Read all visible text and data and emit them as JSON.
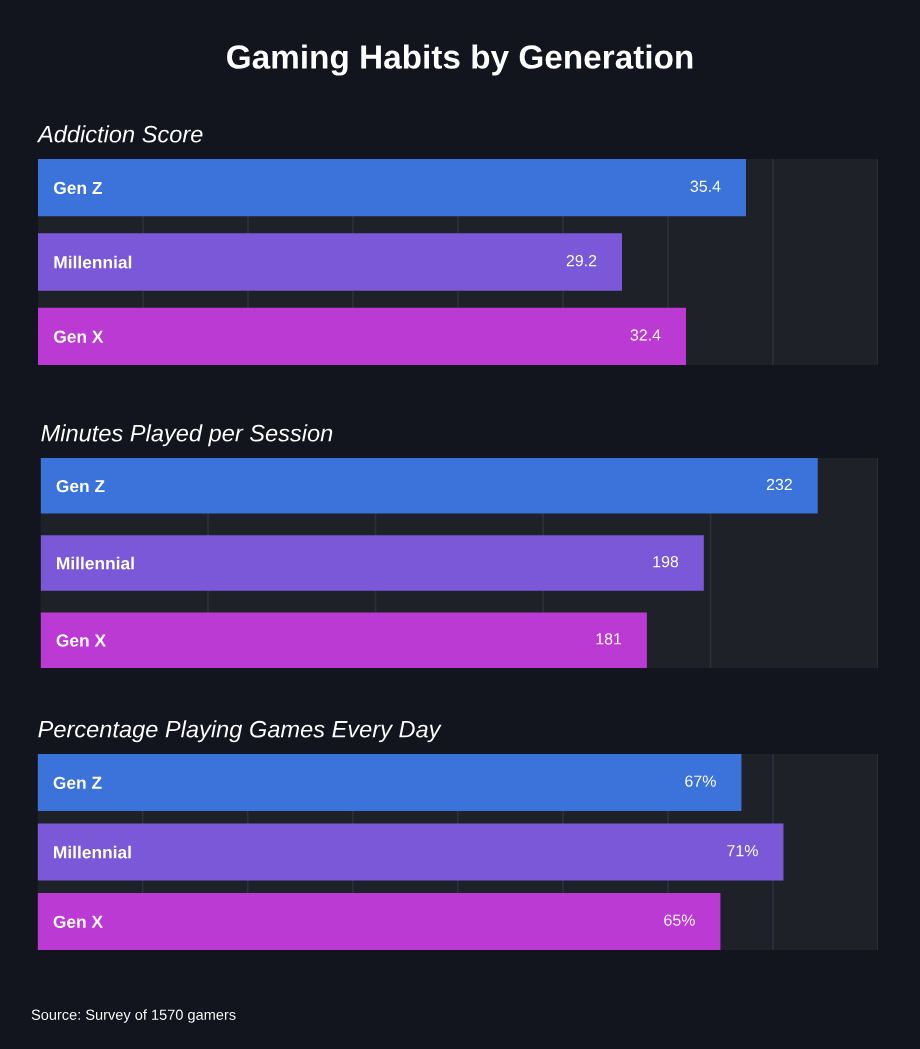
{
  "chart_data": [
    {
      "type": "other",
      "title": "Gaming Habits by Generation"
    },
    {
      "type": "bar",
      "orientation": "horizontal",
      "title": "Addiction Score",
      "categories": [
        "Gen Z",
        "Millennial",
        "Gen X"
      ],
      "values": [
        35.4,
        29.2,
        32.4
      ],
      "colors": [
        "#3c73db",
        "#7b58d7",
        "#bb3ad3"
      ],
      "xlim": [
        0,
        42
      ],
      "xticks": [
        {
          "value": 5.25,
          "label": null
        },
        {
          "value": 10.5,
          "label": null
        },
        {
          "value": 15.75,
          "label": null
        },
        {
          "value": 21,
          "label": null
        },
        {
          "value": 26.25,
          "label": null
        },
        {
          "value": 31.5,
          "label": null
        },
        {
          "value": 36.75,
          "label": null
        },
        {
          "value": 42,
          "label": null
        }
      ],
      "grid": "x",
      "tick_labels": "y",
      "data_labels": true
    },
    {
      "type": "bar",
      "orientation": "horizontal",
      "title": "Minutes Played per Session",
      "categories": [
        "Gen Z",
        "Millennial",
        "Gen X"
      ],
      "values": [
        232,
        198,
        181
      ],
      "colors": [
        "#3c73db",
        "#7b58d7",
        "#bb3ad3"
      ],
      "xlim": [
        0,
        250
      ],
      "xticks": [
        {
          "value": 50,
          "label": null
        },
        {
          "value": 100,
          "label": null
        },
        {
          "value": 150,
          "label": null
        },
        {
          "value": 200,
          "label": null
        },
        {
          "value": 250,
          "label": null
        }
      ],
      "grid": "x",
      "tick_labels": "y",
      "data_labels": true
    },
    {
      "type": "bar",
      "orientation": "horizontal",
      "title": "Percentage Playing Games Every Day",
      "categories": [
        "Gen Z",
        "Millennial",
        "Gen X"
      ],
      "values": [
        67,
        71,
        65
      ],
      "value_labels": [
        "67%",
        "71%",
        "65%"
      ],
      "colors": [
        "#3c73db",
        "#7b58d7",
        "#bb3ad3"
      ],
      "xlim": [
        0,
        80
      ],
      "xticks": [
        {
          "value": 10,
          "label": null
        },
        {
          "value": 20,
          "label": null
        },
        {
          "value": 30,
          "label": null
        },
        {
          "value": 40,
          "label": null
        },
        {
          "value": 50,
          "label": null
        },
        {
          "value": 60,
          "label": null
        },
        {
          "value": 70,
          "label": null
        },
        {
          "value": 80,
          "label": null
        }
      ],
      "grid": "x",
      "tick_labels": "y",
      "annotations": [
        "Source: Survey of 1570 gamers"
      ]
    }
  ]
}
